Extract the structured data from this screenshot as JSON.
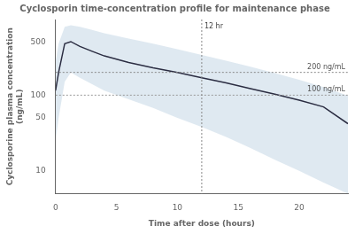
{
  "chart_data": {
    "type": "line",
    "title": "Cyclosporin time-concentration profile for maintenance phase",
    "x_label": "Time after dose (hours)",
    "y_label": "Cyclosporine plasma concentration\n(ng/mL)",
    "x": [
      0,
      0.25,
      0.75,
      1.25,
      2,
      3,
      4,
      6,
      8,
      10,
      12,
      14,
      16,
      18,
      20,
      22,
      24
    ],
    "series": [
      {
        "color": "#2b2d42",
        "values": [
          115,
          200,
          480,
          510,
          440,
          380,
          330,
          270,
          230,
          200,
          170,
          145,
          122,
          103,
          86,
          70,
          42
        ]
      }
    ],
    "band": {
      "color": "#b8cfe0",
      "lower": [
        25,
        50,
        150,
        200,
        170,
        140,
        115,
        88,
        68,
        50,
        38,
        28,
        20,
        14,
        10,
        7,
        5
      ],
      "upper": [
        280,
        480,
        800,
        840,
        800,
        730,
        660,
        560,
        480,
        405,
        340,
        285,
        238,
        196,
        160,
        128,
        98
      ]
    },
    "hlines": [
      {
        "value": 200,
        "label": "200 ng/mL",
        "color": "#888888"
      },
      {
        "value": 100,
        "label": "100 ng/mL",
        "color": "#999999"
      }
    ],
    "vlines": [
      {
        "value": 12,
        "label": "12 hr",
        "color": "#888888"
      }
    ],
    "xlim": [
      0,
      24
    ],
    "xticks": [
      0,
      5,
      10,
      15,
      20
    ],
    "ylim": [
      5,
      1000
    ],
    "yticks": [
      10,
      50,
      100,
      500
    ],
    "log": "y",
    "grid": false
  }
}
